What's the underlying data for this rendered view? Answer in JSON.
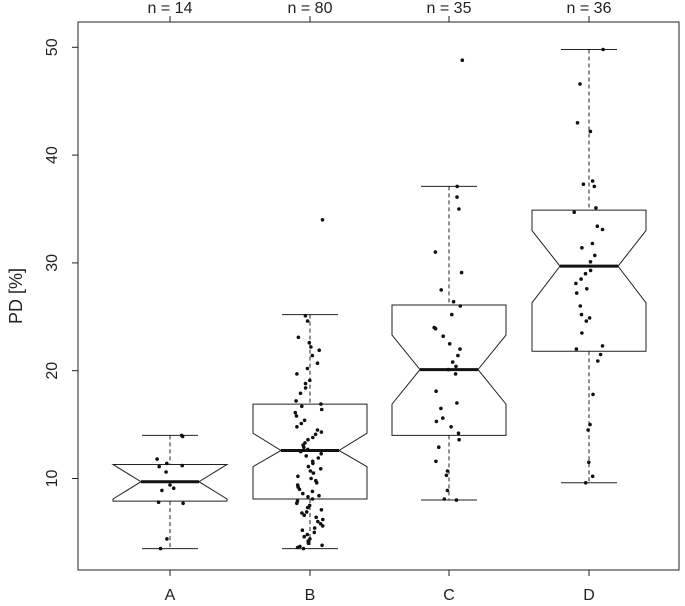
{
  "chart_data": {
    "type": "boxplot",
    "ylabel": "PD [%]",
    "xlabel": "",
    "ylim": [
      2,
      52
    ],
    "y_ticks": [
      10,
      20,
      30,
      40,
      50
    ],
    "notched": true,
    "jittered_points": true,
    "groups": [
      {
        "category": "A",
        "n_label": "n = 14",
        "min": 3.5,
        "q1": 7.9,
        "median": 9.7,
        "q3": 11.3,
        "max": 14.0,
        "notch_low": 8.1,
        "notch_high": 11.3,
        "points": [
          14.0,
          13.9,
          11.8,
          11.4,
          11.2,
          11.1,
          10.6,
          9.4,
          9.1,
          8.9,
          7.8,
          7.7,
          4.4,
          3.5
        ]
      },
      {
        "category": "B",
        "n_label": "n = 80",
        "min": 3.5,
        "q1": 8.1,
        "median": 12.6,
        "q3": 16.9,
        "max": 25.2,
        "notch_low": 11.1,
        "notch_high": 14.2,
        "points": [
          34.0,
          25.1,
          24.6,
          23.1,
          22.6,
          22.2,
          21.9,
          21.4,
          20.7,
          20.2,
          19.7,
          19.1,
          18.8,
          18.4,
          17.9,
          17.2,
          16.9,
          16.7,
          16.4,
          16.1,
          15.8,
          15.4,
          15.1,
          14.8,
          14.5,
          14.3,
          14.1,
          13.8,
          13.6,
          13.3,
          13.1,
          12.9,
          12.7,
          12.5,
          12.3,
          12.1,
          11.9,
          11.6,
          11.4,
          11.1,
          10.9,
          10.7,
          10.5,
          10.2,
          10.0,
          9.8,
          9.6,
          9.4,
          9.2,
          9.0,
          8.8,
          8.6,
          8.4,
          8.3,
          8.1,
          7.9,
          7.7,
          7.5,
          7.3,
          7.1,
          6.9,
          6.8,
          6.6,
          6.4,
          6.2,
          6.0,
          5.8,
          5.6,
          5.4,
          5.2,
          5.0,
          4.8,
          4.6,
          4.4,
          4.2,
          4.0,
          3.8,
          3.7,
          3.6,
          3.5
        ]
      },
      {
        "category": "C",
        "n_label": "n = 35",
        "min": 8.0,
        "q1": 14.0,
        "median": 20.1,
        "q3": 26.1,
        "max": 37.1,
        "notch_low": 16.9,
        "notch_high": 23.3,
        "points": [
          48.8,
          37.1,
          36.1,
          35.0,
          31.0,
          29.1,
          27.5,
          26.4,
          26.0,
          25.2,
          24.0,
          23.9,
          23.2,
          22.5,
          22.0,
          21.4,
          20.8,
          20.4,
          20.1,
          19.7,
          18.1,
          17.0,
          16.5,
          15.6,
          15.3,
          14.8,
          14.2,
          13.6,
          12.9,
          11.6,
          10.7,
          10.3,
          8.9,
          8.1,
          8.0
        ]
      },
      {
        "category": "D",
        "n_label": "n = 36",
        "min": 9.6,
        "q1": 21.8,
        "median": 29.7,
        "q3": 34.9,
        "max": 49.8,
        "notch_low": 26.3,
        "notch_high": 33.0,
        "points": [
          49.8,
          46.6,
          43.0,
          42.2,
          37.6,
          37.3,
          37.1,
          35.1,
          34.7,
          33.4,
          33.1,
          31.8,
          31.4,
          30.7,
          30.1,
          29.3,
          29.0,
          28.5,
          28.1,
          27.6,
          27.2,
          26.0,
          25.2,
          24.9,
          24.6,
          23.5,
          22.3,
          22.0,
          21.5,
          20.9,
          17.8,
          15.0,
          14.5,
          11.5,
          10.2,
          9.6
        ]
      }
    ]
  }
}
